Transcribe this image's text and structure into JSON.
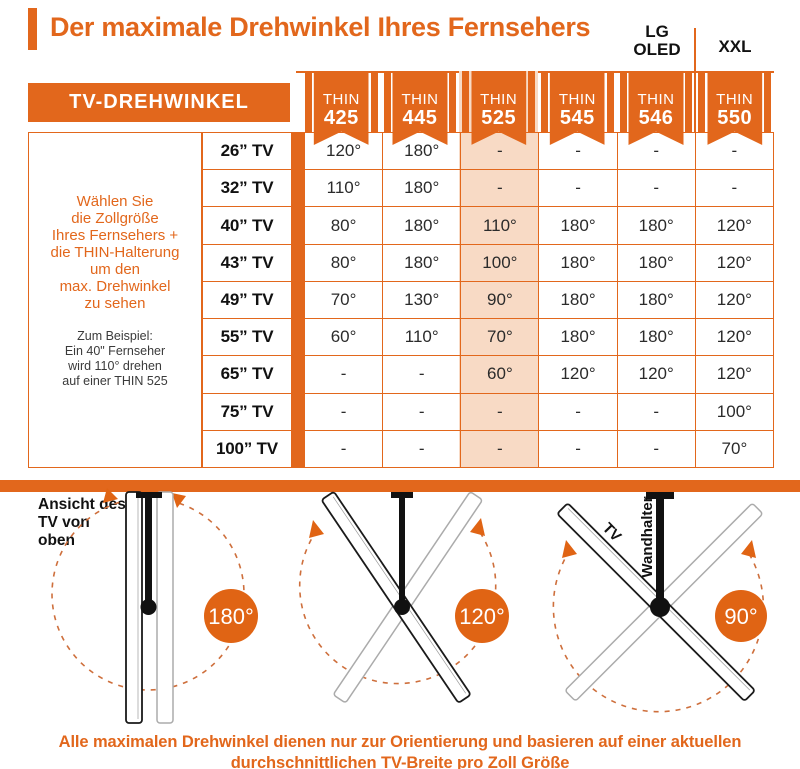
{
  "title": "Der maximale Drehwinkel Ihres Fernsehers",
  "header_labels": {
    "lg_oled": [
      "LG",
      "OLED"
    ],
    "xxl": "XXL"
  },
  "chart_data": {
    "type": "table",
    "corner_label": "TV-DREHWINKEL",
    "columns": [
      {
        "line1": "THIN",
        "line2": "425"
      },
      {
        "line1": "THIN",
        "line2": "445"
      },
      {
        "line1": "THIN",
        "line2": "525"
      },
      {
        "line1": "THIN",
        "line2": "545"
      },
      {
        "line1": "THIN",
        "line2": "546"
      },
      {
        "line1": "THIN",
        "line2": "550"
      }
    ],
    "column_group_note": {
      "THIN 546": "LG OLED",
      "THIN 550": "XXL"
    },
    "highlighted_column_index": 2,
    "row_labels": [
      "26” TV",
      "32” TV",
      "40” TV",
      "43” TV",
      "49” TV",
      "55” TV",
      "65” TV",
      "75” TV",
      "100” TV"
    ],
    "values": [
      [
        "120°",
        "180°",
        "-",
        "-",
        "-",
        "-"
      ],
      [
        "110°",
        "180°",
        "-",
        "-",
        "-",
        "-"
      ],
      [
        "80°",
        "180°",
        "110°",
        "180°",
        "180°",
        "120°"
      ],
      [
        "80°",
        "180°",
        "100°",
        "180°",
        "180°",
        "120°"
      ],
      [
        "70°",
        "130°",
        "90°",
        "180°",
        "180°",
        "120°"
      ],
      [
        "60°",
        "110°",
        "70°",
        "180°",
        "180°",
        "120°"
      ],
      [
        "-",
        "-",
        "60°",
        "120°",
        "120°",
        "120°"
      ],
      [
        "-",
        "-",
        "-",
        "-",
        "-",
        "100°"
      ],
      [
        "-",
        "-",
        "-",
        "-",
        "-",
        "70°"
      ]
    ]
  },
  "sidebar": {
    "instruction": [
      "Wählen Sie",
      "die Zollgröße",
      "Ihres Fernsehers +",
      "die THIN-Halterung",
      "um den",
      "max. Drehwinkel",
      "zu sehen"
    ],
    "example": [
      "Zum Beispiel:",
      "Ein 40\" Fernseher",
      "wird 110° drehen",
      "auf einer THIN 525"
    ]
  },
  "diagrams": {
    "view_label": [
      "Ansicht des",
      "TV von",
      "oben"
    ],
    "items": [
      {
        "angle": "180°"
      },
      {
        "angle": "120°"
      },
      {
        "angle": "90°",
        "tv_label": "TV",
        "mount_label": "Wandhalter"
      }
    ]
  },
  "footer": {
    "line1": "Alle maximalen Drehwinkel dienen nur zur Orientierung und basieren auf einer aktuellen",
    "line2": "durchschnittlichen TV-Breite pro Zoll Größe"
  },
  "colors": {
    "orange": "#E2671C",
    "badge": "#E06414",
    "peach": "#F8DAC5",
    "dash": "#CE6F3C",
    "ink": "#1A1A1A"
  }
}
